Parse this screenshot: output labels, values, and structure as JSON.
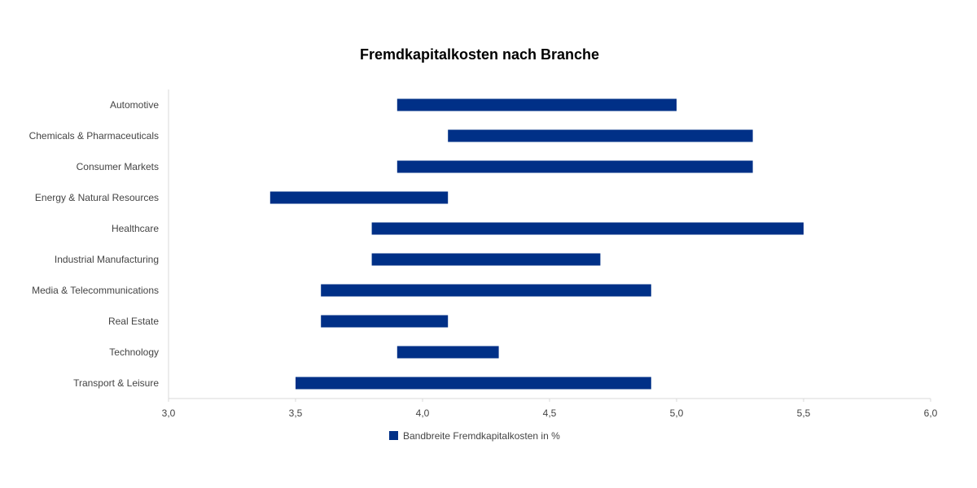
{
  "chart_data": {
    "type": "bar",
    "orientation": "horizontal-floating",
    "title": "Fremdkapitalkosten nach Branche",
    "categories": [
      "Automotive",
      "Chemicals & Pharmaceuticals",
      "Consumer Markets",
      "Energy & Natural Resources",
      "Healthcare",
      "Industrial Manufacturing",
      "Media & Telecommunications",
      "Real Estate",
      "Technology",
      "Transport & Leisure"
    ],
    "series": [
      {
        "name": "Bandbreite Fremdkapitalkosten in %",
        "ranges": [
          [
            3.9,
            5.0
          ],
          [
            4.1,
            5.3
          ],
          [
            3.9,
            5.3
          ],
          [
            3.4,
            4.1
          ],
          [
            3.8,
            5.5
          ],
          [
            3.8,
            4.7
          ],
          [
            3.6,
            4.9
          ],
          [
            3.6,
            4.1
          ],
          [
            3.9,
            4.3
          ],
          [
            3.5,
            4.9
          ]
        ]
      }
    ],
    "xlim": [
      3.0,
      6.0
    ],
    "xticks": [
      "3,0",
      "3,5",
      "4,0",
      "4,5",
      "5,0",
      "5,5",
      "6,0"
    ],
    "xtick_values": [
      3.0,
      3.5,
      4.0,
      4.5,
      5.0,
      5.5,
      6.0
    ],
    "grid": false,
    "legend_position": "bottom",
    "colors": {
      "bar": "#003087",
      "title": "#1f3f8f",
      "axis": "#d9d9d9",
      "text": "#444444"
    }
  }
}
